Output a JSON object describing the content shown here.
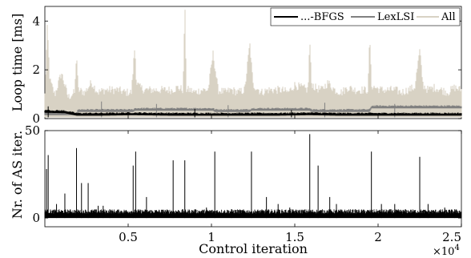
{
  "chart_data": [
    {
      "type": "line",
      "ylabel": "Loop time [ms]",
      "xlim": [
        0,
        25000
      ],
      "ylim": [
        0,
        4.6
      ],
      "yticks": [
        0,
        2,
        4
      ],
      "grid": false,
      "legend": "top-right",
      "series": [
        {
          "name": "...-BFGS",
          "color": "#000000",
          "x": [
            0,
            1200,
            1900,
            2400,
            3400,
            5300,
            7500,
            8400,
            10100,
            12300,
            14000,
            15900,
            17500,
            19500,
            21000,
            22500,
            24000,
            25000
          ],
          "y": [
            0.32,
            0.3,
            0.2,
            0.2,
            0.2,
            0.22,
            0.2,
            0.2,
            0.2,
            0.2,
            0.2,
            0.22,
            0.2,
            0.2,
            0.2,
            0.2,
            0.2,
            0.2
          ],
          "spikes": [
            [
              200,
              0.5
            ],
            [
              9000,
              0.4
            ],
            [
              14800,
              0.35
            ]
          ]
        },
        {
          "name": "LexLSI",
          "color": "#808080",
          "x": [
            0,
            1900,
            2000,
            5300,
            5400,
            8400,
            10100,
            10200,
            12300,
            12400,
            15900,
            16000,
            19500,
            19600,
            25000
          ],
          "y": [
            0.22,
            0.22,
            0.35,
            0.35,
            0.4,
            0.4,
            0.4,
            0.35,
            0.35,
            0.4,
            0.4,
            0.35,
            0.35,
            0.5,
            0.5
          ],
          "spikes": [
            [
              3400,
              0.7
            ],
            [
              6700,
              0.6
            ],
            [
              11000,
              0.55
            ],
            [
              16800,
              0.65
            ],
            [
              21000,
              0.6
            ]
          ]
        },
        {
          "name": "All",
          "color": "#d8d2c4",
          "x": [
            0,
            150,
            300,
            600,
            1000,
            1400,
            1800,
            1900,
            2000,
            2400,
            2800,
            3200,
            3600,
            4000,
            4400,
            4800,
            5200,
            5400,
            5500,
            5700,
            6000,
            6400,
            6800,
            7200,
            7600,
            8000,
            8300,
            8400,
            8500,
            8700,
            9000,
            9400,
            9800,
            10100,
            10400,
            10800,
            11200,
            11600,
            12000,
            12300,
            12500,
            12700,
            13000,
            13400,
            13800,
            14200,
            14600,
            15000,
            15400,
            15800,
            15900,
            16000,
            16200,
            16600,
            17000,
            17400,
            17800,
            18200,
            18600,
            19000,
            19400,
            19500,
            19600,
            19800,
            20200,
            20600,
            21000,
            21400,
            21800,
            22200,
            22500,
            22700,
            23000,
            23400,
            23800,
            24200,
            24600,
            25000
          ],
          "y": [
            0.8,
            3.6,
            1.4,
            0.8,
            1.7,
            0.7,
            0.9,
            2.6,
            1.0,
            0.9,
            1.3,
            0.9,
            1.0,
            1.0,
            1.0,
            0.9,
            0.9,
            2.8,
            1.3,
            1.1,
            1.0,
            1.0,
            1.0,
            1.0,
            1.0,
            1.1,
            1.0,
            4.6,
            1.0,
            1.0,
            0.9,
            1.0,
            1.0,
            2.5,
            1.0,
            0.9,
            1.0,
            0.9,
            1.0,
            2.9,
            1.2,
            1.1,
            0.9,
            1.0,
            1.0,
            1.0,
            0.9,
            1.2,
            1.1,
            1.0,
            3.1,
            1.3,
            1.1,
            1.0,
            1.3,
            1.0,
            0.9,
            1.1,
            1.0,
            1.0,
            1.0,
            3.3,
            1.2,
            1.1,
            1.0,
            1.0,
            1.0,
            0.9,
            1.0,
            1.1,
            2.6,
            1.2,
            1.0,
            1.1,
            1.0,
            0.9,
            1.1,
            1.0
          ]
        }
      ]
    },
    {
      "type": "line",
      "ylabel": "Nr. of AS iter.",
      "xlabel": "Control iteration",
      "xlim": [
        0,
        25000
      ],
      "ylim": [
        0,
        50
      ],
      "yticks": [
        0,
        50
      ],
      "xticks": [
        0.5,
        1,
        1.5,
        2,
        2.5
      ],
      "x_multiplier": "×10",
      "x_multiplier_exponent": "4",
      "grid": false,
      "series": [
        {
          "color": "#000000",
          "baseline": 3,
          "spikes": [
            [
              100,
              28
            ],
            [
              200,
              36
            ],
            [
              700,
              8
            ],
            [
              1200,
              14
            ],
            [
              1900,
              40
            ],
            [
              2200,
              20
            ],
            [
              2600,
              20
            ],
            [
              3200,
              7
            ],
            [
              3500,
              7
            ],
            [
              3900,
              5
            ],
            [
              5300,
              30
            ],
            [
              5450,
              38
            ],
            [
              6100,
              12
            ],
            [
              7700,
              33
            ],
            [
              8400,
              33
            ],
            [
              9000,
              5
            ],
            [
              9700,
              6
            ],
            [
              10200,
              38
            ],
            [
              11200,
              5
            ],
            [
              12400,
              38
            ],
            [
              13300,
              12
            ],
            [
              14000,
              8
            ],
            [
              14700,
              6
            ],
            [
              15900,
              48
            ],
            [
              16400,
              30
            ],
            [
              17100,
              12
            ],
            [
              17500,
              8
            ],
            [
              19600,
              38
            ],
            [
              20200,
              8
            ],
            [
              21000,
              8
            ],
            [
              22500,
              35
            ],
            [
              23000,
              8
            ],
            [
              24000,
              6
            ],
            [
              24600,
              5
            ]
          ]
        }
      ]
    }
  ]
}
